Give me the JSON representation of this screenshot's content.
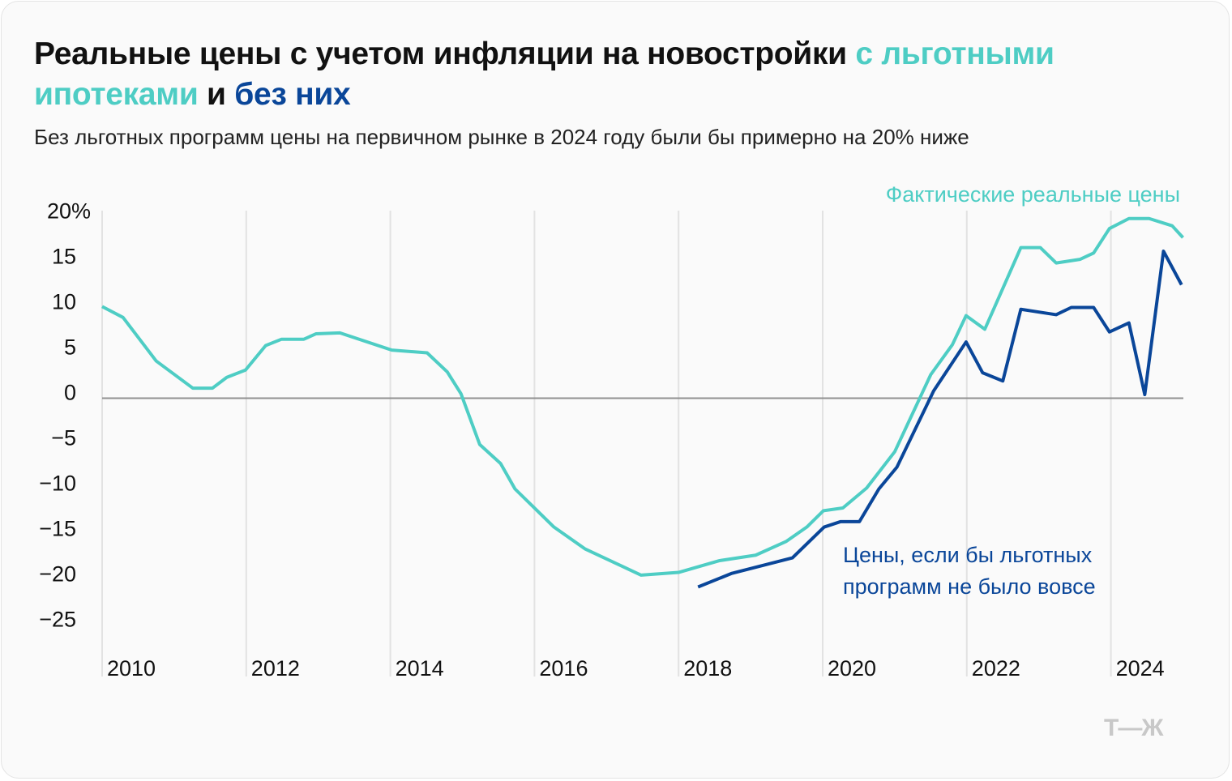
{
  "title": {
    "part1": "Реальные цены с учетом инфляции на новостройки ",
    "part2": "с льготными ипотеками",
    "part3": " и ",
    "part4": "без них"
  },
  "subtitle": "Без льготных программ цены на первичном рынке в 2024 году были бы примерно на 20% ниже",
  "logo": "Т—Ж",
  "colors": {
    "actual": "#4ecdc4",
    "without": "#0a4699",
    "zero_line": "#909090",
    "grid": "#e2e2e2",
    "text": "#111111"
  },
  "chart_data": {
    "type": "line",
    "title": "Реальные цены с учетом инфляции на новостройки с льготными ипотеками и без них",
    "ylim": [
      -25,
      20
    ],
    "xlim": [
      2010,
      2025
    ],
    "yticks": [
      {
        "v": 20,
        "label": "20%"
      },
      {
        "v": 15,
        "label": "15"
      },
      {
        "v": 10,
        "label": "10"
      },
      {
        "v": 5,
        "label": "5"
      },
      {
        "v": 0,
        "label": "0"
      },
      {
        "v": -5,
        "label": "−5"
      },
      {
        "v": -10,
        "label": "−10"
      },
      {
        "v": -15,
        "label": "−15"
      },
      {
        "v": -20,
        "label": "−20"
      },
      {
        "v": -25,
        "label": "−25"
      }
    ],
    "xticks": [
      {
        "v": 2010,
        "label": "2010"
      },
      {
        "v": 2012,
        "label": "2012"
      },
      {
        "v": 2014,
        "label": "2014"
      },
      {
        "v": 2016,
        "label": "2016"
      },
      {
        "v": 2018,
        "label": "2018"
      },
      {
        "v": 2020,
        "label": "2020"
      },
      {
        "v": 2022,
        "label": "2022"
      },
      {
        "v": 2024,
        "label": "2024"
      }
    ],
    "grid": "vertical at year ticks",
    "series": [
      {
        "name": "Фактические реальные цены",
        "color": "#4ecdc4",
        "points": [
          [
            2010.0,
            10.1
          ],
          [
            2010.29,
            8.9
          ],
          [
            2010.75,
            4.1
          ],
          [
            2011.26,
            1.1
          ],
          [
            2011.53,
            1.1
          ],
          [
            2011.73,
            2.3
          ],
          [
            2011.99,
            3.1
          ],
          [
            2012.27,
            5.8
          ],
          [
            2012.49,
            6.5
          ],
          [
            2012.8,
            6.5
          ],
          [
            2012.97,
            7.1
          ],
          [
            2013.3,
            7.2
          ],
          [
            2014.02,
            5.3
          ],
          [
            2014.51,
            5.0
          ],
          [
            2014.79,
            2.9
          ],
          [
            2014.98,
            0.5
          ],
          [
            2015.24,
            -5.1
          ],
          [
            2015.53,
            -7.2
          ],
          [
            2015.73,
            -10.0
          ],
          [
            2016.27,
            -14.2
          ],
          [
            2016.7,
            -16.6
          ],
          [
            2017.48,
            -19.5
          ],
          [
            2018.0,
            -19.2
          ],
          [
            2018.57,
            -17.9
          ],
          [
            2019.07,
            -17.3
          ],
          [
            2019.49,
            -15.8
          ],
          [
            2019.78,
            -14.2
          ],
          [
            2020.01,
            -12.4
          ],
          [
            2020.28,
            -12.1
          ],
          [
            2020.61,
            -9.9
          ],
          [
            2021.0,
            -5.9
          ],
          [
            2021.5,
            2.6
          ],
          [
            2021.8,
            5.9
          ],
          [
            2021.99,
            9.1
          ],
          [
            2022.25,
            7.6
          ],
          [
            2022.75,
            16.6
          ],
          [
            2023.02,
            16.6
          ],
          [
            2023.24,
            14.9
          ],
          [
            2023.57,
            15.3
          ],
          [
            2023.76,
            16.0
          ],
          [
            2023.98,
            18.7
          ],
          [
            2024.25,
            19.8
          ],
          [
            2024.53,
            19.8
          ],
          [
            2024.85,
            19.0
          ],
          [
            2025.0,
            17.7
          ]
        ]
      },
      {
        "name": "Цены, если бы льготных программ не было вовсе",
        "name_lines": [
          "Цены, если бы льготных",
          "программ не было вовсе"
        ],
        "color": "#0a4699",
        "points": [
          [
            2018.27,
            -20.8
          ],
          [
            2018.74,
            -19.3
          ],
          [
            2019.58,
            -17.6
          ],
          [
            2020.02,
            -14.2
          ],
          [
            2020.25,
            -13.6
          ],
          [
            2020.51,
            -13.6
          ],
          [
            2020.78,
            -10.0
          ],
          [
            2021.03,
            -7.6
          ],
          [
            2021.54,
            0.8
          ],
          [
            2021.99,
            6.2
          ],
          [
            2022.22,
            2.8
          ],
          [
            2022.5,
            1.9
          ],
          [
            2022.75,
            9.8
          ],
          [
            2023.24,
            9.2
          ],
          [
            2023.45,
            10.0
          ],
          [
            2023.76,
            10.0
          ],
          [
            2023.98,
            7.3
          ],
          [
            2024.25,
            8.3
          ],
          [
            2024.47,
            0.4
          ],
          [
            2024.73,
            16.2
          ],
          [
            2024.98,
            12.5
          ]
        ]
      }
    ]
  }
}
